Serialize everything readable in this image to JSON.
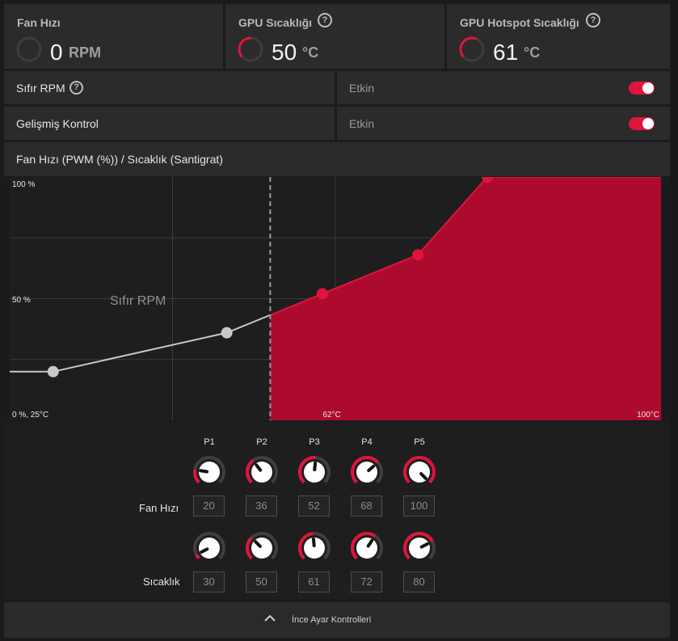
{
  "metrics": [
    {
      "title": "Fan Hızı",
      "value": "0",
      "unit": "RPM",
      "help": false,
      "level": 0
    },
    {
      "title": "GPU Sıcaklığı",
      "value": "50",
      "unit": "°C",
      "help": true,
      "level": 0.3
    },
    {
      "title": "GPU Hotspot Sıcaklığı",
      "value": "61",
      "unit": "°C",
      "help": true,
      "level": 0.38
    }
  ],
  "settings": {
    "zero_rpm_label": "Sıfır RPM",
    "zero_rpm_value": "Etkin",
    "zero_rpm_enabled": true,
    "advanced_label": "Gelişmiş Kontrol",
    "advanced_value": "Etkin",
    "advanced_enabled": true,
    "help_glyph": "?"
  },
  "chart_title": "Fan Hızı (PWM (%)) / Sıcaklık (Santigrat)",
  "chart_data": {
    "type": "line",
    "title": "Fan Hızı (PWM (%)) / Sıcaklık (Santigrat)",
    "x_range": [
      25,
      100
    ],
    "y_range": [
      0,
      100
    ],
    "tick_labels": {
      "y_top": "100 %",
      "y_mid": "50 %",
      "origin": "0 %, 25°C",
      "x_mid": "62°C",
      "x_end": "100°C"
    },
    "zero_rpm_label": "Sıfır RPM",
    "zero_rpm_until_x": 55,
    "points": [
      {
        "name": "P1",
        "x": 30,
        "y": 20
      },
      {
        "name": "P2",
        "x": 50,
        "y": 36
      },
      {
        "name": "P3",
        "x": 61,
        "y": 52
      },
      {
        "name": "P4",
        "x": 72,
        "y": 68
      },
      {
        "name": "P5",
        "x": 80,
        "y": 100
      }
    ],
    "colors": {
      "active": "#e0143c",
      "fill": "#ad0b2d",
      "inactive": "#c8c8c8"
    }
  },
  "knobs": {
    "columns": [
      "P1",
      "P2",
      "P3",
      "P4",
      "P5"
    ],
    "fan_label": "Fan Hızı",
    "temp_label": "Sıcaklık",
    "fan_values": [
      "20",
      "36",
      "52",
      "68",
      "100"
    ],
    "temp_values": [
      "30",
      "50",
      "61",
      "72",
      "80"
    ]
  },
  "footer": {
    "label": "İnce Ayar Kontrolleri",
    "icon": "chevron-up-icon"
  }
}
